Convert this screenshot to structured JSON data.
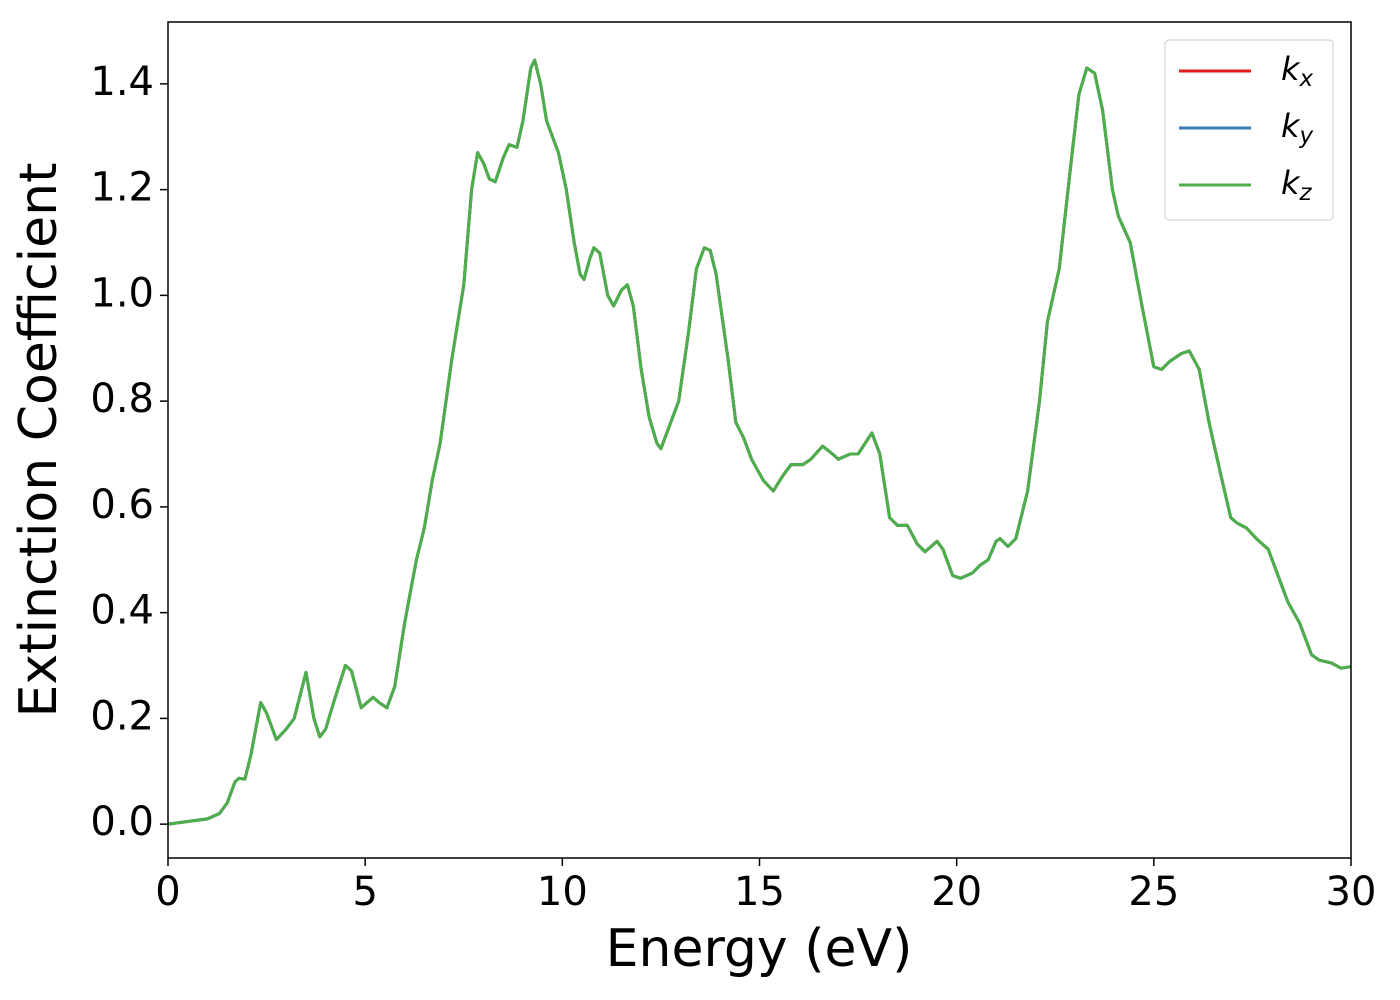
{
  "chart_data": {
    "type": "line",
    "xlabel": "Energy (eV)",
    "ylabel": "Extinction Coefficient",
    "x": [
      0,
      0.5,
      1.0,
      1.3,
      1.5,
      1.7,
      1.8,
      1.95,
      2.1,
      2.35,
      2.5,
      2.75,
      3.0,
      3.2,
      3.5,
      3.7,
      3.85,
      4.0,
      4.2,
      4.5,
      4.65,
      4.9,
      5.2,
      5.35,
      5.55,
      5.75,
      6.0,
      6.3,
      6.5,
      6.7,
      6.9,
      7.2,
      7.5,
      7.7,
      7.85,
      8.0,
      8.15,
      8.3,
      8.5,
      8.65,
      8.85,
      9.0,
      9.2,
      9.3,
      9.45,
      9.6,
      9.9,
      10.1,
      10.3,
      10.45,
      10.55,
      10.7,
      10.8,
      10.95,
      11.15,
      11.3,
      11.5,
      11.65,
      11.8,
      12.0,
      12.2,
      12.4,
      12.5,
      12.7,
      12.95,
      13.2,
      13.4,
      13.6,
      13.75,
      13.9,
      14.2,
      14.4,
      14.6,
      14.8,
      15.1,
      15.35,
      15.6,
      15.8,
      16.1,
      16.3,
      16.6,
      16.85,
      17.0,
      17.3,
      17.5,
      17.85,
      18.05,
      18.3,
      18.5,
      18.75,
      19.0,
      19.2,
      19.5,
      19.65,
      19.9,
      20.1,
      20.4,
      20.6,
      20.8,
      21.0,
      21.1,
      21.3,
      21.5,
      21.8,
      22.1,
      22.3,
      22.6,
      22.9,
      23.1,
      23.3,
      23.5,
      23.7,
      23.95,
      24.1,
      24.4,
      24.7,
      25.0,
      25.2,
      25.4,
      25.7,
      25.9,
      26.15,
      26.4,
      26.7,
      26.95,
      27.1,
      27.35,
      27.6,
      27.9,
      28.1,
      28.4,
      28.7,
      29.0,
      29.2,
      29.5,
      29.75,
      30
    ],
    "series": [
      {
        "name": "kx",
        "color": "#e41a1c",
        "values": [
          0,
          0.005,
          0.01,
          0.02,
          0.04,
          0.08,
          0.087,
          0.085,
          0.13,
          0.23,
          0.21,
          0.16,
          0.18,
          0.2,
          0.287,
          0.2,
          0.165,
          0.18,
          0.23,
          0.3,
          0.29,
          0.22,
          0.24,
          0.23,
          0.22,
          0.26,
          0.38,
          0.5,
          0.56,
          0.65,
          0.72,
          0.88,
          1.02,
          1.2,
          1.27,
          1.25,
          1.22,
          1.215,
          1.26,
          1.285,
          1.28,
          1.33,
          1.43,
          1.445,
          1.4,
          1.33,
          1.27,
          1.2,
          1.1,
          1.04,
          1.03,
          1.07,
          1.09,
          1.08,
          1.0,
          0.98,
          1.01,
          1.02,
          0.98,
          0.86,
          0.77,
          0.72,
          0.71,
          0.75,
          0.8,
          0.93,
          1.05,
          1.09,
          1.085,
          1.04,
          0.88,
          0.76,
          0.73,
          0.69,
          0.65,
          0.63,
          0.66,
          0.68,
          0.68,
          0.69,
          0.715,
          0.7,
          0.69,
          0.7,
          0.7,
          0.74,
          0.7,
          0.58,
          0.565,
          0.565,
          0.53,
          0.515,
          0.535,
          0.52,
          0.47,
          0.465,
          0.475,
          0.49,
          0.5,
          0.535,
          0.54,
          0.525,
          0.54,
          0.63,
          0.8,
          0.95,
          1.05,
          1.25,
          1.38,
          1.43,
          1.42,
          1.35,
          1.2,
          1.15,
          1.1,
          0.98,
          0.865,
          0.86,
          0.875,
          0.89,
          0.895,
          0.86,
          0.76,
          0.66,
          0.58,
          0.57,
          0.56,
          0.54,
          0.52,
          0.48,
          0.42,
          0.38,
          0.32,
          0.31,
          0.305,
          0.295,
          0.298
        ]
      },
      {
        "name": "ky",
        "color": "#377eb8",
        "values": [
          0,
          0.005,
          0.01,
          0.02,
          0.04,
          0.08,
          0.087,
          0.085,
          0.13,
          0.23,
          0.21,
          0.16,
          0.18,
          0.2,
          0.287,
          0.2,
          0.165,
          0.18,
          0.23,
          0.3,
          0.29,
          0.22,
          0.24,
          0.23,
          0.22,
          0.26,
          0.38,
          0.5,
          0.56,
          0.65,
          0.72,
          0.88,
          1.02,
          1.2,
          1.27,
          1.25,
          1.22,
          1.215,
          1.26,
          1.285,
          1.28,
          1.33,
          1.43,
          1.445,
          1.4,
          1.33,
          1.27,
          1.2,
          1.1,
          1.04,
          1.03,
          1.07,
          1.09,
          1.08,
          1.0,
          0.98,
          1.01,
          1.02,
          0.98,
          0.86,
          0.77,
          0.72,
          0.71,
          0.75,
          0.8,
          0.93,
          1.05,
          1.09,
          1.085,
          1.04,
          0.88,
          0.76,
          0.73,
          0.69,
          0.65,
          0.63,
          0.66,
          0.68,
          0.68,
          0.69,
          0.715,
          0.7,
          0.69,
          0.7,
          0.7,
          0.74,
          0.7,
          0.58,
          0.565,
          0.565,
          0.53,
          0.515,
          0.535,
          0.52,
          0.47,
          0.465,
          0.475,
          0.49,
          0.5,
          0.535,
          0.54,
          0.525,
          0.54,
          0.63,
          0.8,
          0.95,
          1.05,
          1.25,
          1.38,
          1.43,
          1.42,
          1.35,
          1.2,
          1.15,
          1.1,
          0.98,
          0.865,
          0.86,
          0.875,
          0.89,
          0.895,
          0.86,
          0.76,
          0.66,
          0.58,
          0.57,
          0.56,
          0.54,
          0.52,
          0.48,
          0.42,
          0.38,
          0.32,
          0.31,
          0.305,
          0.295,
          0.298
        ]
      },
      {
        "name": "kz",
        "color": "#4daf4a",
        "values": [
          0,
          0.005,
          0.01,
          0.02,
          0.04,
          0.08,
          0.087,
          0.085,
          0.13,
          0.23,
          0.21,
          0.16,
          0.18,
          0.2,
          0.287,
          0.2,
          0.165,
          0.18,
          0.23,
          0.3,
          0.29,
          0.22,
          0.24,
          0.23,
          0.22,
          0.26,
          0.38,
          0.5,
          0.56,
          0.65,
          0.72,
          0.88,
          1.02,
          1.2,
          1.27,
          1.25,
          1.22,
          1.215,
          1.26,
          1.285,
          1.28,
          1.33,
          1.43,
          1.445,
          1.4,
          1.33,
          1.27,
          1.2,
          1.1,
          1.04,
          1.03,
          1.07,
          1.09,
          1.08,
          1.0,
          0.98,
          1.01,
          1.02,
          0.98,
          0.86,
          0.77,
          0.72,
          0.71,
          0.75,
          0.8,
          0.93,
          1.05,
          1.09,
          1.085,
          1.04,
          0.88,
          0.76,
          0.73,
          0.69,
          0.65,
          0.63,
          0.66,
          0.68,
          0.68,
          0.69,
          0.715,
          0.7,
          0.69,
          0.7,
          0.7,
          0.74,
          0.7,
          0.58,
          0.565,
          0.565,
          0.53,
          0.515,
          0.535,
          0.52,
          0.47,
          0.465,
          0.475,
          0.49,
          0.5,
          0.535,
          0.54,
          0.525,
          0.54,
          0.63,
          0.8,
          0.95,
          1.05,
          1.25,
          1.38,
          1.43,
          1.42,
          1.35,
          1.2,
          1.15,
          1.1,
          0.98,
          0.865,
          0.86,
          0.875,
          0.89,
          0.895,
          0.86,
          0.76,
          0.66,
          0.58,
          0.57,
          0.56,
          0.54,
          0.52,
          0.48,
          0.42,
          0.38,
          0.32,
          0.31,
          0.305,
          0.295,
          0.298
        ]
      }
    ],
    "xlim": [
      0,
      30
    ],
    "xticks": [
      0,
      5,
      10,
      15,
      20,
      25,
      30
    ],
    "ylim": [
      -0.064,
      1.517
    ],
    "yticks": [
      {
        "value": 0,
        "label": "0.0"
      },
      {
        "value": 0.2,
        "label": "0.2"
      },
      {
        "value": 0.4,
        "label": "0.4"
      },
      {
        "value": 0.6,
        "label": "0.6"
      },
      {
        "value": 0.8,
        "label": "0.8"
      },
      {
        "value": 1.0,
        "label": "1.0"
      },
      {
        "value": 1.2,
        "label": "1.2"
      },
      {
        "value": 1.4,
        "label": "1.4"
      }
    ],
    "grid": false,
    "legend": "upper right"
  }
}
